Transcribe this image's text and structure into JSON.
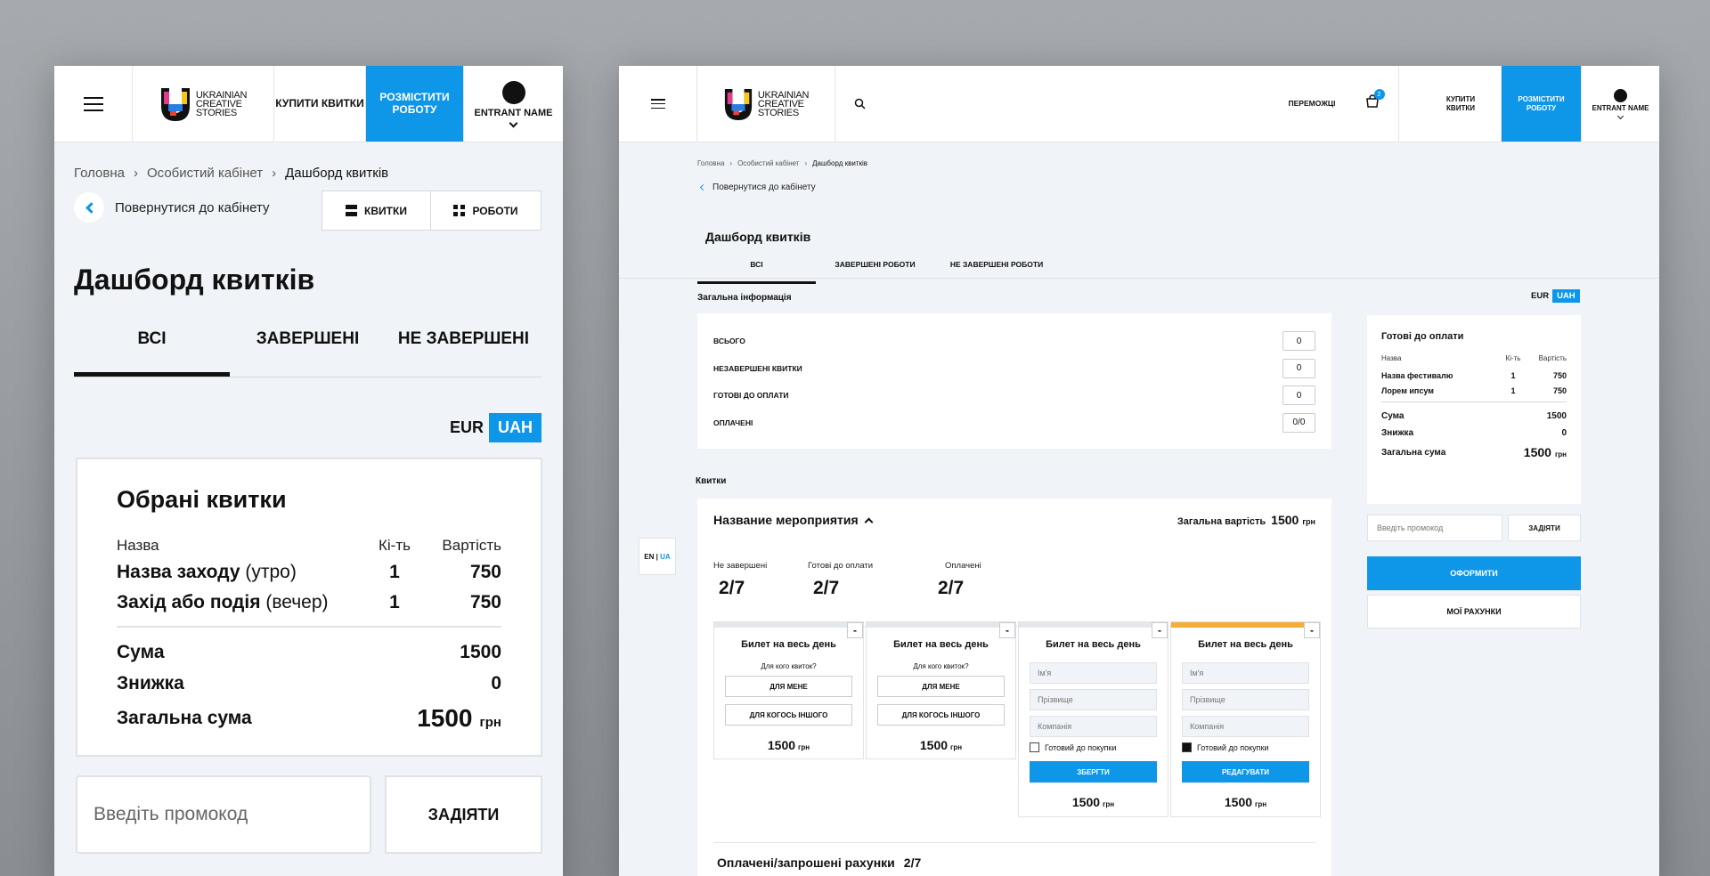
{
  "brand": {
    "logo_text": [
      "UKRAINIAN",
      "CREATIVE",
      "STORIES"
    ]
  },
  "colors": {
    "accent": "#0e96e8",
    "highlight": "#f5ad3a"
  },
  "mobile": {
    "header": {
      "buy_tickets": "КУПИТИ КВИТКИ",
      "post_work": "РОЗМІСТИТИ РОБОТУ",
      "user_name": "ENTRANT NAME"
    },
    "breadcrumb": [
      "Головна",
      "Особистий кабінет",
      "Дашборд квитків"
    ],
    "back": "Повернутися до кабінету",
    "switch": {
      "tickets": "КВИТКИ",
      "works": "РОБОТИ"
    },
    "title": "Дашборд квитків",
    "tabs": [
      "ВСІ",
      "ЗАВЕРШЕНІ",
      "НЕ ЗАВЕРШЕНІ"
    ],
    "currency": {
      "eur": "EUR",
      "uah": "UAH"
    },
    "cart": {
      "title": "Обрані квитки",
      "col_name": "Назва",
      "col_qty": "Кі-ть",
      "col_price": "Вартість",
      "items": [
        {
          "name": "Назва заходу",
          "note": "(утро)",
          "qty": "1",
          "price": "750"
        },
        {
          "name": "Захід або подія",
          "note": "(вечер)",
          "qty": "1",
          "price": "750"
        }
      ],
      "sum_label": "Сума",
      "sum": "1500",
      "discount_label": "Знижка",
      "discount": "0",
      "total_label": "Загальна сума",
      "total": "1500",
      "currency_short": "грн"
    },
    "promo_placeholder": "Введіть промокод",
    "apply": "ЗАДІЯТИ"
  },
  "desktop": {
    "header": {
      "winners": "ПЕРЕМОЖЦІ",
      "cart_count": "2",
      "buy_tickets": "КУПИТИ КВИТКИ",
      "post_work": "РОЗМІСТИТИ РОБОТУ",
      "user_name": "ENTRANT NAME"
    },
    "breadcrumb": [
      "Головна",
      "Особистий кабінет",
      "Дашборд квитків"
    ],
    "back": "Повернутися до кабінету",
    "title": "Дашборд квитків",
    "tabs": [
      "ВСІ",
      "ЗАВЕРШЕНІ РОБОТИ",
      "НЕ ЗАВЕРШЕНІ РОБОТИ"
    ],
    "general_title": "Загальна інформація",
    "currency": {
      "eur": "EUR",
      "uah": "UAH"
    },
    "info_rows": [
      {
        "label": "ВСЬОГО",
        "value": "0"
      },
      {
        "label": "НЕЗАВЕРШЕНІ КВИТКИ",
        "value": "0"
      },
      {
        "label": "ГОТОВІ ДО ОПЛАТИ",
        "value": "0"
      },
      {
        "label": "ОПЛАЧЕНІ",
        "value": "0/0"
      }
    ],
    "lang": {
      "en": "EN",
      "sep": "|",
      "ua": "UA"
    },
    "tickets_title": "Квитки",
    "event": {
      "name": "Название мероприятия",
      "total_label": "Загальна вартість",
      "total": "1500",
      "currency_short": "грн",
      "stats": [
        {
          "label": "Не завершені",
          "value": "2/7"
        },
        {
          "label": "Готові до оплати",
          "value": "2/7"
        },
        {
          "label": "Оплачені",
          "value": "2/7"
        }
      ],
      "card_title": "Билет на весь день",
      "who": "Для кого квиток?",
      "for_me": "ДЛЯ МЕНЕ",
      "for_other": "ДЛЯ КОГОСЬ ІНШОГО",
      "price": "1500",
      "minus": "-",
      "first_name": "Ім'я",
      "last_name": "Прізвище",
      "company": "Компанія",
      "ready": "Готовий до покупки",
      "save": "ЗБЕРГТИ",
      "edit": "РЕДАГУВАТИ",
      "paid_title": "Оплачені/запрошені рахунки",
      "paid_value": "2/7"
    },
    "side": {
      "title": "Готові до оплати",
      "col_name": "Назва",
      "col_qty": "Кі-ть",
      "col_price": "Вартість",
      "items": [
        {
          "name": "Назва фестивалю",
          "qty": "1",
          "price": "750"
        },
        {
          "name": "Лорем ипсум",
          "qty": "1",
          "price": "750"
        }
      ],
      "sum_label": "Сума",
      "sum": "1500",
      "discount_label": "Знижка",
      "discount": "0",
      "total_label": "Загальна сума",
      "total": "1500",
      "currency_short": "грн"
    },
    "promo_placeholder": "Введіть промокод",
    "apply": "ЗАДІЯТИ",
    "order": "ОФОРМИТИ",
    "invoices": "МОЇ РАХУНКИ"
  }
}
